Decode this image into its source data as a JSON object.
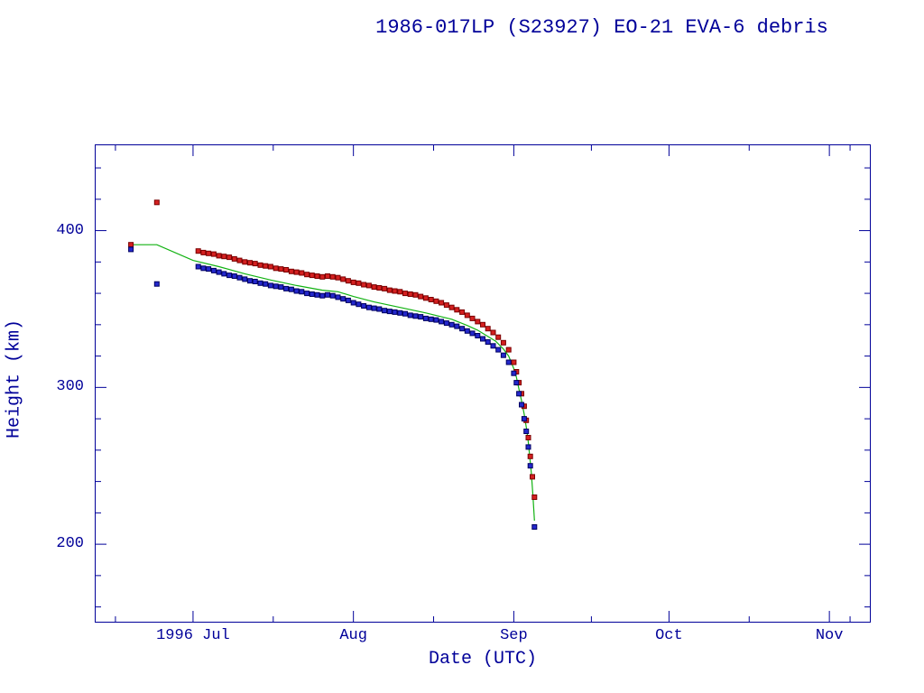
{
  "page": {
    "background_color": "#ffffff",
    "accent_color": "#000099"
  },
  "title": "1986-017LP (S23927) EO-21 EVA-6 debris",
  "chart_data": {
    "type": "scatter",
    "title": "1986-017LP (S23927) EO-21 EVA-6 debris",
    "xlabel": "Date (UTC)",
    "ylabel": "Height (km)",
    "frame_color": "#000099",
    "grid": false,
    "legend": "none",
    "x_axis": {
      "unit": "days relative to 1996 Jul 1",
      "range": [
        -19,
        131
      ],
      "major_ticks": [
        {
          "day": 0,
          "label": "1996 Jul"
        },
        {
          "day": 31,
          "label": "Aug"
        },
        {
          "day": 62,
          "label": "Sep"
        },
        {
          "day": 92,
          "label": "Oct"
        },
        {
          "day": 123,
          "label": "Nov"
        }
      ],
      "minor_ticks": [
        -15,
        15.5,
        46.5,
        77,
        107.5,
        127
      ]
    },
    "y_axis": {
      "range": [
        150,
        455
      ],
      "major_ticks": [
        200,
        300,
        400
      ],
      "minor_step": 20
    },
    "series": [
      {
        "name": "green-line-fit",
        "type": "line",
        "color": "#12b212",
        "points": [
          [
            -12,
            391
          ],
          [
            -7,
            391
          ],
          [
            0,
            381
          ],
          [
            5,
            377
          ],
          [
            10,
            372.5
          ],
          [
            15,
            368.5
          ],
          [
            20,
            365
          ],
          [
            25,
            362
          ],
          [
            28,
            361
          ],
          [
            31,
            358
          ],
          [
            35,
            354.5
          ],
          [
            40,
            351
          ],
          [
            45,
            347.5
          ],
          [
            50,
            343.5
          ],
          [
            53,
            339.5
          ],
          [
            55,
            336.5
          ],
          [
            57,
            332.5
          ],
          [
            58.5,
            329.5
          ],
          [
            60,
            324.5
          ],
          [
            61,
            320
          ],
          [
            62,
            312
          ],
          [
            62.5,
            306.5
          ],
          [
            63,
            299
          ],
          [
            63.5,
            291.5
          ],
          [
            64,
            283
          ],
          [
            64.5,
            273
          ],
          [
            64.8,
            265
          ],
          [
            65.1,
            255
          ],
          [
            65.4,
            245
          ],
          [
            65.7,
            231
          ],
          [
            66,
            215
          ]
        ]
      },
      {
        "name": "red-squares-upper",
        "type": "scatter",
        "marker": "square",
        "color": "#d42020",
        "edge_color": "#7a0000",
        "points": [
          [
            -12,
            391
          ],
          [
            -7,
            418
          ],
          [
            1,
            387
          ],
          [
            2,
            386
          ],
          [
            3,
            385.5
          ],
          [
            4,
            385
          ],
          [
            5,
            384
          ],
          [
            6,
            383.5
          ],
          [
            7,
            383
          ],
          [
            8,
            382
          ],
          [
            9,
            381
          ],
          [
            10,
            380
          ],
          [
            11,
            379.5
          ],
          [
            12,
            379
          ],
          [
            13,
            378
          ],
          [
            14,
            377.5
          ],
          [
            15,
            377
          ],
          [
            16,
            376
          ],
          [
            17,
            375.5
          ],
          [
            18,
            375
          ],
          [
            19,
            374
          ],
          [
            20,
            373.5
          ],
          [
            21,
            373
          ],
          [
            22,
            372
          ],
          [
            23,
            371.5
          ],
          [
            24,
            371
          ],
          [
            25,
            370.5
          ],
          [
            26,
            371
          ],
          [
            27,
            370.5
          ],
          [
            28,
            370
          ],
          [
            29,
            369
          ],
          [
            30,
            368
          ],
          [
            31,
            367
          ],
          [
            32,
            366.5
          ],
          [
            33,
            365.5
          ],
          [
            34,
            365
          ],
          [
            35,
            364
          ],
          [
            36,
            363.5
          ],
          [
            37,
            363
          ],
          [
            38,
            362
          ],
          [
            39,
            361.5
          ],
          [
            40,
            361
          ],
          [
            41,
            360
          ],
          [
            42,
            359.5
          ],
          [
            43,
            359
          ],
          [
            44,
            358
          ],
          [
            45,
            357
          ],
          [
            46,
            356
          ],
          [
            47,
            355
          ],
          [
            48,
            354
          ],
          [
            49,
            352.5
          ],
          [
            50,
            351
          ],
          [
            51,
            349.5
          ],
          [
            52,
            348
          ],
          [
            53,
            346
          ],
          [
            54,
            344
          ],
          [
            55,
            342
          ],
          [
            56,
            340
          ],
          [
            57,
            337.5
          ],
          [
            58,
            335
          ],
          [
            59,
            332
          ],
          [
            60,
            328.5
          ],
          [
            61,
            324
          ],
          [
            62,
            316
          ],
          [
            62.5,
            310
          ],
          [
            63,
            303
          ],
          [
            63.5,
            296
          ],
          [
            64,
            288
          ],
          [
            64.4,
            279
          ],
          [
            64.8,
            268
          ],
          [
            65.2,
            256
          ],
          [
            65.6,
            243
          ],
          [
            66,
            230
          ]
        ]
      },
      {
        "name": "blue-squares-lower",
        "type": "scatter",
        "marker": "square",
        "color": "#2428cc",
        "edge_color": "#000060",
        "points": [
          [
            -12,
            388
          ],
          [
            -7,
            366
          ],
          [
            1,
            377
          ],
          [
            2,
            376
          ],
          [
            3,
            375.5
          ],
          [
            4,
            374.5
          ],
          [
            5,
            373.5
          ],
          [
            6,
            372.5
          ],
          [
            7,
            371.5
          ],
          [
            8,
            371
          ],
          [
            9,
            370
          ],
          [
            10,
            369
          ],
          [
            11,
            368
          ],
          [
            12,
            367.5
          ],
          [
            13,
            366.5
          ],
          [
            14,
            366
          ],
          [
            15,
            365
          ],
          [
            16,
            364.5
          ],
          [
            17,
            364
          ],
          [
            18,
            363
          ],
          [
            19,
            362.5
          ],
          [
            20,
            361.5
          ],
          [
            21,
            361
          ],
          [
            22,
            360
          ],
          [
            23,
            359.5
          ],
          [
            24,
            359
          ],
          [
            25,
            358.5
          ],
          [
            26,
            359
          ],
          [
            27,
            358.5
          ],
          [
            28,
            357.5
          ],
          [
            29,
            356.5
          ],
          [
            30,
            355.5
          ],
          [
            31,
            354
          ],
          [
            32,
            353
          ],
          [
            33,
            352
          ],
          [
            34,
            351
          ],
          [
            35,
            350.5
          ],
          [
            36,
            350
          ],
          [
            37,
            349
          ],
          [
            38,
            348.5
          ],
          [
            39,
            348
          ],
          [
            40,
            347.5
          ],
          [
            41,
            347
          ],
          [
            42,
            346
          ],
          [
            43,
            345.5
          ],
          [
            44,
            345
          ],
          [
            45,
            344
          ],
          [
            46,
            343.5
          ],
          [
            47,
            343
          ],
          [
            48,
            342
          ],
          [
            49,
            341
          ],
          [
            50,
            340
          ],
          [
            51,
            339
          ],
          [
            52,
            337.5
          ],
          [
            53,
            336
          ],
          [
            54,
            334.5
          ],
          [
            55,
            333
          ],
          [
            56,
            331
          ],
          [
            57,
            329
          ],
          [
            58,
            326.5
          ],
          [
            59,
            324
          ],
          [
            60,
            320.5
          ],
          [
            61,
            316
          ],
          [
            62,
            309
          ],
          [
            62.5,
            303
          ],
          [
            63,
            296
          ],
          [
            63.5,
            289
          ],
          [
            64,
            280
          ],
          [
            64.4,
            272
          ],
          [
            64.8,
            262
          ],
          [
            65.2,
            250
          ],
          [
            66,
            211
          ]
        ]
      }
    ]
  }
}
